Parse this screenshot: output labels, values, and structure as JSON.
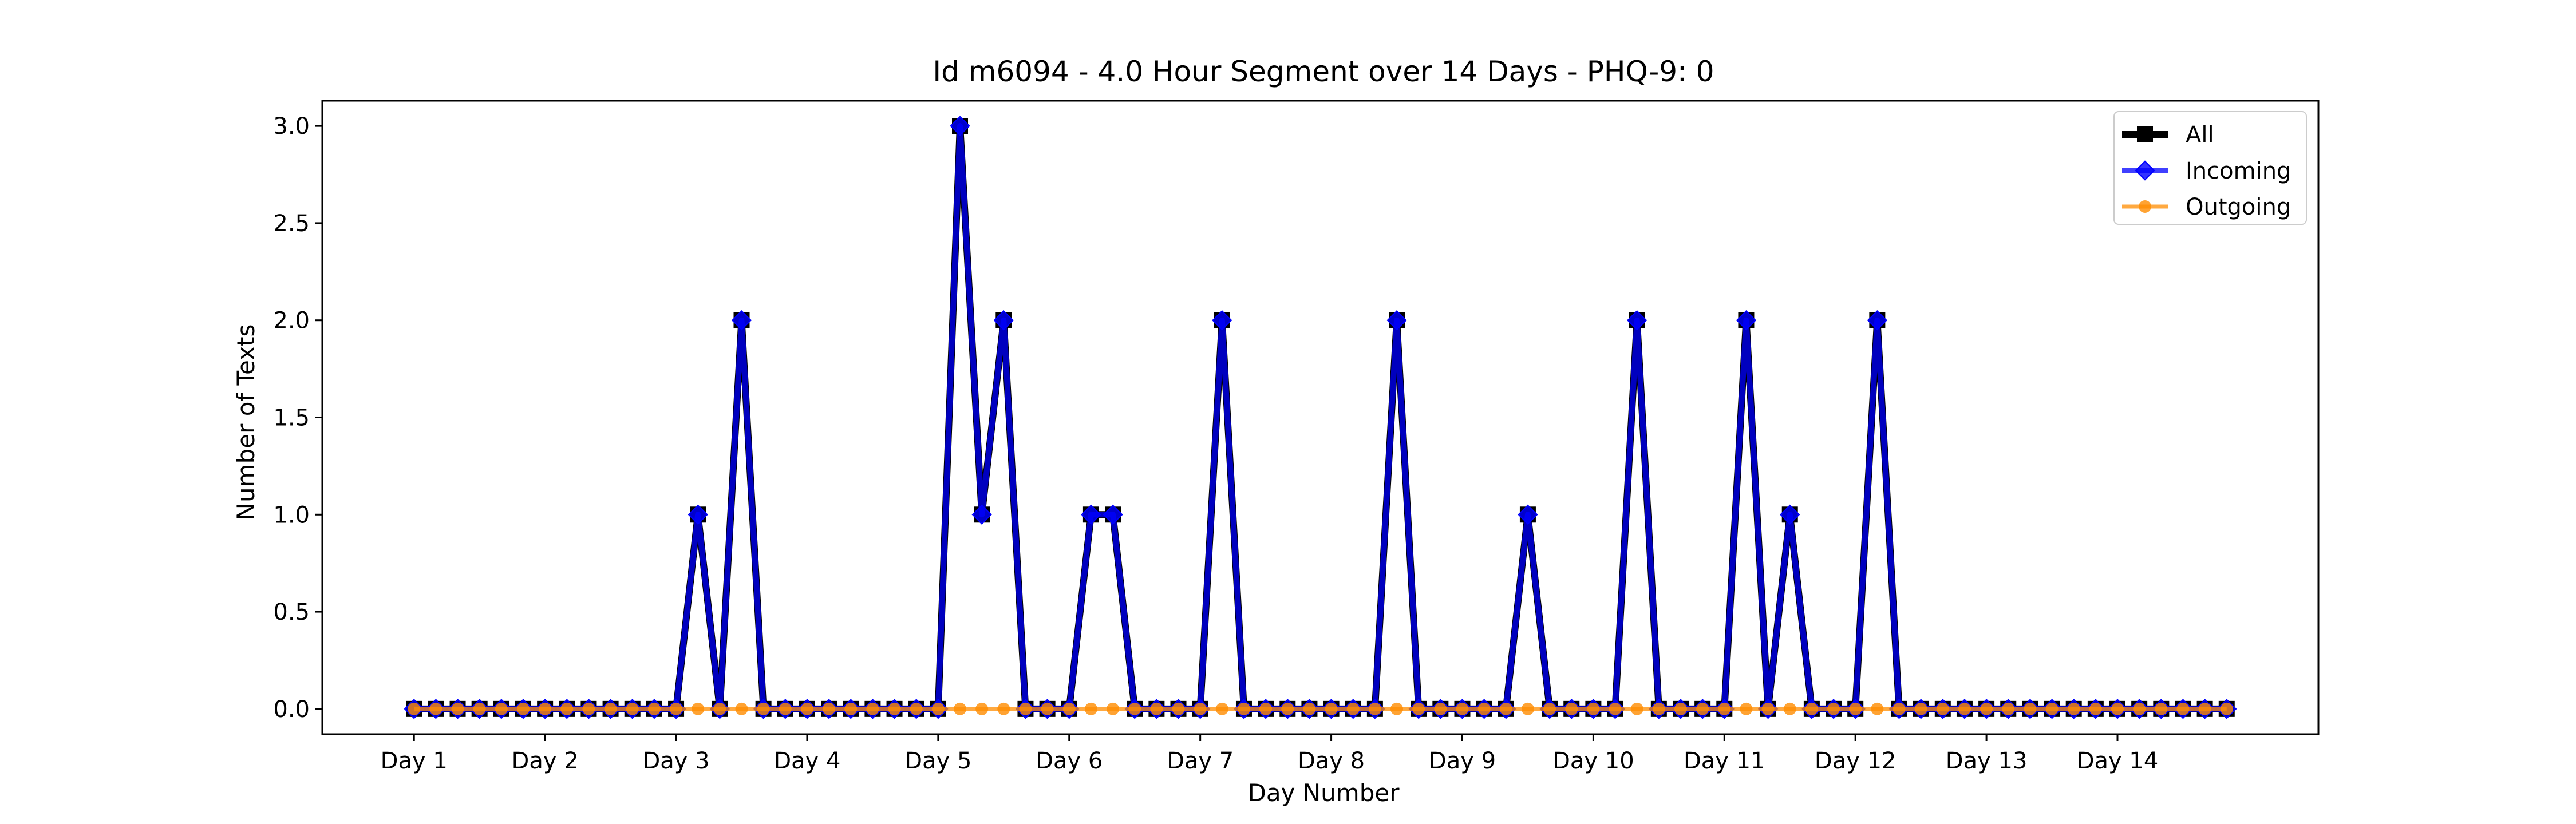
{
  "chart_data": {
    "type": "line",
    "title": "Id m6094 - 4.0 Hour Segment over 14 Days - PHQ-9: 0",
    "xlabel": "Day Number",
    "ylabel": "Number of Texts",
    "ylim": [
      -0.13,
      3.13
    ],
    "yticks": [
      "0.0",
      "0.5",
      "1.0",
      "1.5",
      "2.0",
      "2.5",
      "3.0"
    ],
    "ytick_values": [
      0,
      0.5,
      1.0,
      1.5,
      2.0,
      2.5,
      3.0
    ],
    "xticks": [
      "Day 1",
      "Day 2",
      "Day 3",
      "Day 4",
      "Day 5",
      "Day 6",
      "Day 7",
      "Day 8",
      "Day 9",
      "Day 10",
      "Day 11",
      "Day 12",
      "Day 13",
      "Day 14"
    ],
    "xtick_values": [
      0,
      6,
      12,
      18,
      24,
      30,
      36,
      42,
      48,
      54,
      60,
      66,
      72,
      78
    ],
    "x": [
      0,
      1,
      2,
      3,
      4,
      5,
      6,
      7,
      8,
      9,
      10,
      11,
      12,
      13,
      14,
      15,
      16,
      17,
      18,
      19,
      20,
      21,
      22,
      23,
      24,
      25,
      26,
      27,
      28,
      29,
      30,
      31,
      32,
      33,
      34,
      35,
      36,
      37,
      38,
      39,
      40,
      41,
      42,
      43,
      44,
      45,
      46,
      47,
      48,
      49,
      50,
      51,
      52,
      53,
      54,
      55,
      56,
      57,
      58,
      59,
      60,
      61,
      62,
      63,
      64,
      65,
      66,
      67,
      68,
      69,
      70,
      71,
      72,
      73,
      74,
      75,
      76,
      77,
      78,
      79,
      80,
      81,
      82,
      83
    ],
    "legend_position": "top-right",
    "grid": false,
    "series": [
      {
        "name": "All",
        "color": "#000000",
        "marker": "square",
        "values": [
          0,
          0,
          0,
          0,
          0,
          0,
          0,
          0,
          0,
          0,
          0,
          0,
          0,
          1,
          0,
          2,
          0,
          0,
          0,
          0,
          0,
          0,
          0,
          0,
          0,
          3,
          1,
          2,
          0,
          0,
          0,
          1,
          1,
          0,
          0,
          0,
          0,
          2,
          0,
          0,
          0,
          0,
          0,
          0,
          0,
          2,
          0,
          0,
          0,
          0,
          0,
          1,
          0,
          0,
          0,
          0,
          2,
          0,
          0,
          0,
          0,
          2,
          0,
          1,
          0,
          0,
          0,
          2,
          0,
          0,
          0,
          0,
          0,
          0,
          0,
          0,
          0,
          0,
          0,
          0,
          0,
          0,
          0,
          0
        ]
      },
      {
        "name": "Incoming",
        "color": "#0000ff",
        "marker": "diamond",
        "values": [
          0,
          0,
          0,
          0,
          0,
          0,
          0,
          0,
          0,
          0,
          0,
          0,
          0,
          1,
          0,
          2,
          0,
          0,
          0,
          0,
          0,
          0,
          0,
          0,
          0,
          3,
          1,
          2,
          0,
          0,
          0,
          1,
          1,
          0,
          0,
          0,
          0,
          2,
          0,
          0,
          0,
          0,
          0,
          0,
          0,
          2,
          0,
          0,
          0,
          0,
          0,
          1,
          0,
          0,
          0,
          0,
          2,
          0,
          0,
          0,
          0,
          2,
          0,
          1,
          0,
          0,
          0,
          2,
          0,
          0,
          0,
          0,
          0,
          0,
          0,
          0,
          0,
          0,
          0,
          0,
          0,
          0,
          0,
          0
        ]
      },
      {
        "name": "Outgoing",
        "color": "#ff8c00",
        "marker": "circle",
        "values": [
          0,
          0,
          0,
          0,
          0,
          0,
          0,
          0,
          0,
          0,
          0,
          0,
          0,
          0,
          0,
          0,
          0,
          0,
          0,
          0,
          0,
          0,
          0,
          0,
          0,
          0,
          0,
          0,
          0,
          0,
          0,
          0,
          0,
          0,
          0,
          0,
          0,
          0,
          0,
          0,
          0,
          0,
          0,
          0,
          0,
          0,
          0,
          0,
          0,
          0,
          0,
          0,
          0,
          0,
          0,
          0,
          0,
          0,
          0,
          0,
          0,
          0,
          0,
          0,
          0,
          0,
          0,
          0,
          0,
          0,
          0,
          0,
          0,
          0,
          0,
          0,
          0,
          0,
          0,
          0,
          0,
          0,
          0,
          0
        ]
      }
    ]
  }
}
